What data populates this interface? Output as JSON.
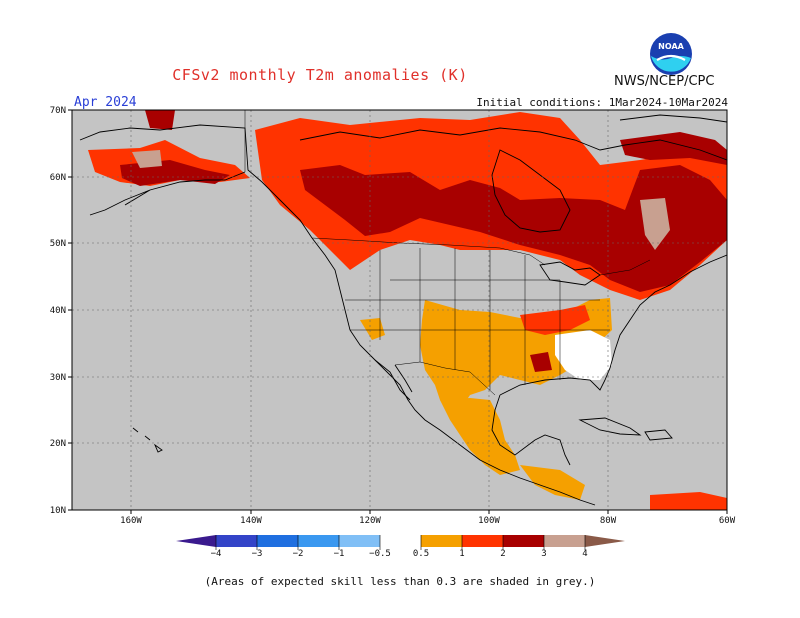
{
  "header": {
    "title": "CFSv2 monthly T2m anomalies (K)",
    "agency": "NWS/NCEP/CPC",
    "month": "Apr 2024",
    "initial_conditions": "Initial conditions: 1Mar2024-10Mar2024",
    "logo_text": "NOAA"
  },
  "map": {
    "lat_labels": [
      "70N",
      "60N",
      "50N",
      "40N",
      "30N",
      "20N",
      "10N"
    ],
    "lon_labels": [
      "160W",
      "140W",
      "120W",
      "100W",
      "80W",
      "60W"
    ],
    "colors": {
      "land_no_skill": "#c4c4c4",
      "near_normal": "#ffffff",
      "anom_0_5_1": "#f5a000",
      "anom_1_2": "#ff3300",
      "anom_2_3": "#a80000",
      "anom_3_4": "#c8a090",
      "coastline": "#000000"
    }
  },
  "colorbar": {
    "labels": [
      "−4",
      "−3",
      "−2",
      "−1",
      "−0.5",
      "0.5",
      "1",
      "2",
      "3",
      "4"
    ],
    "colors": [
      "#3a1a8e",
      "#3344c8",
      "#1f6fe0",
      "#3a98f0",
      "#80bff6",
      "#ffffff",
      "#f5a000",
      "#ff3300",
      "#a80000",
      "#c8a090",
      "#8a5a48"
    ]
  },
  "footnote": "(Areas of expected skill less than 0.3 are shaded in grey.)"
}
